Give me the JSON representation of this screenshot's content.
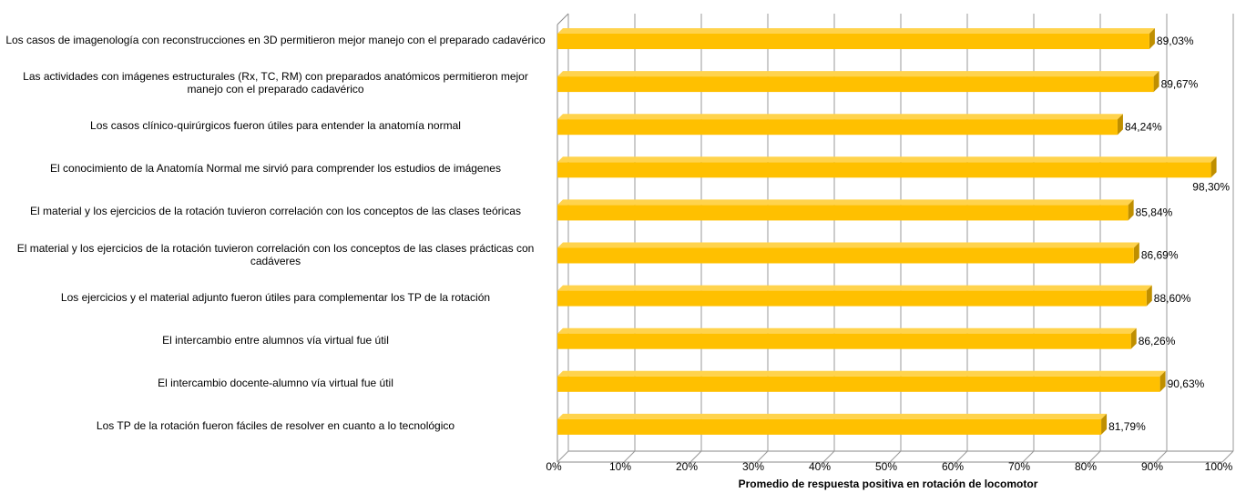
{
  "chart_data": {
    "type": "bar",
    "orientation": "horizontal",
    "xlabel": "Promedio de respuesta positiva en rotación de locomotor",
    "categories": [
      "Los casos de imagenología con reconstrucciones en 3D permitieron mejor manejo con el preparado cadavérico",
      "Las actividades con imágenes estructurales (Rx, TC, RM) con preparados anatómicos permitieron mejor manejo con el preparado cadavérico",
      "Los casos clínico-quirúrgicos fueron útiles para entender la anatomía normal",
      "El conocimiento de la Anatomía Normal me sirvió para comprender los estudios de imágenes",
      "El material y los ejercicios de la rotación tuvieron correlación con los conceptos de las clases teóricas",
      "El material y los ejercicios de la rotación tuvieron correlación con los conceptos de las clases prácticas con cadáveres",
      "Los ejercicios y el material adjunto fueron útiles para complementar los TP de la rotación",
      "El intercambio entre alumnos vía virtual fue útil",
      "El intercambio docente-alumno vía virtual fue útil",
      "Los TP de la rotación fueron fáciles de resolver en cuanto a lo tecnológico"
    ],
    "values": [
      89.03,
      89.67,
      84.24,
      98.3,
      85.84,
      86.69,
      88.6,
      86.26,
      90.63,
      81.79
    ],
    "value_labels": [
      "89,03%",
      "89,67%",
      "84,24%",
      "98,30%",
      "85,84%",
      "86,69%",
      "88,60%",
      "86,26%",
      "90,63%",
      "81,79%"
    ],
    "color": "#FFC000",
    "xlim": [
      0,
      100
    ],
    "xticks": [
      {
        "value": 0,
        "label": "0%"
      },
      {
        "value": 10,
        "label": "10%"
      },
      {
        "value": 20,
        "label": "20%"
      },
      {
        "value": 30,
        "label": "30%"
      },
      {
        "value": 40,
        "label": "40%"
      },
      {
        "value": 50,
        "label": "50%"
      },
      {
        "value": 60,
        "label": "60%"
      },
      {
        "value": 70,
        "label": "70%"
      },
      {
        "value": 80,
        "label": "80%"
      },
      {
        "value": 90,
        "label": "90%"
      },
      {
        "value": 100,
        "label": "100%"
      }
    ],
    "grid": true
  }
}
